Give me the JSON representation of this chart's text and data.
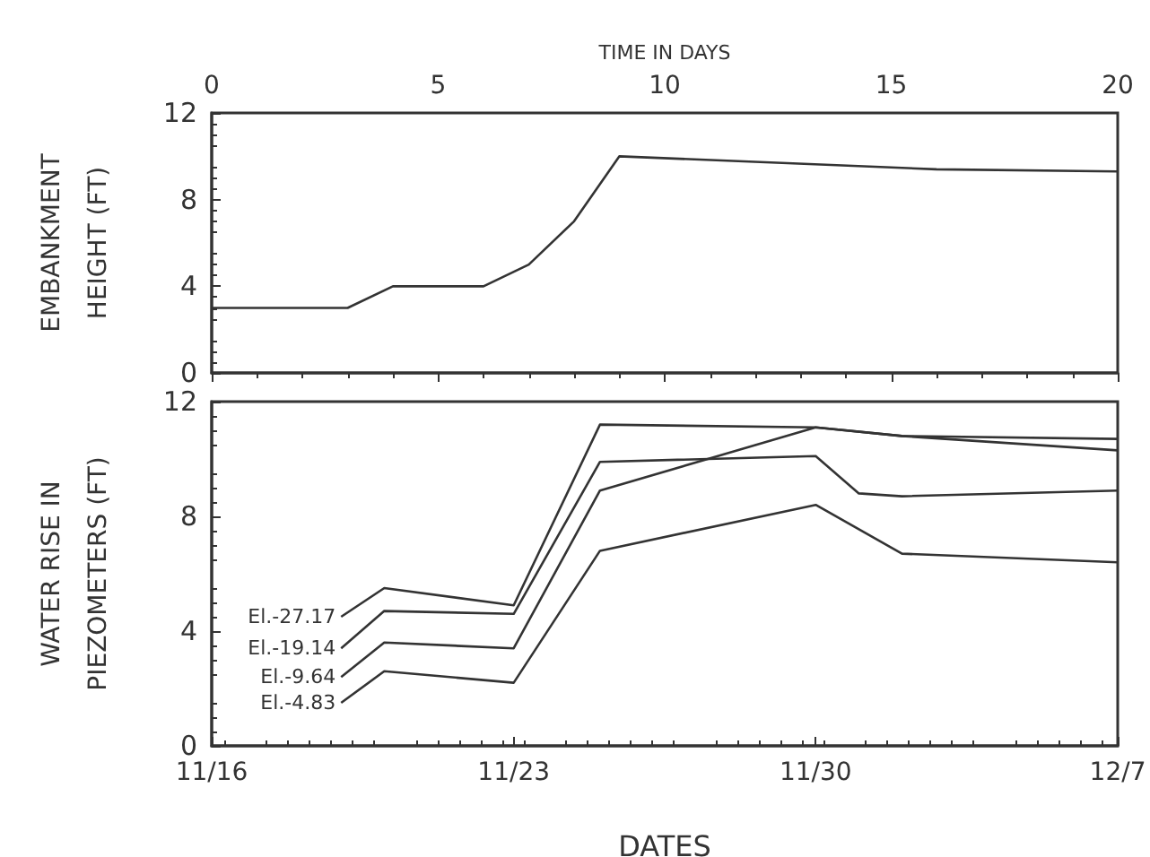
{
  "chart_data": [
    {
      "type": "line",
      "xlabel": "TIME IN DAYS",
      "ylabel": "EMBANKMENT HEIGHT (FT)",
      "x": [
        0,
        3,
        4,
        6,
        7,
        8,
        9,
        16,
        20
      ],
      "series": [
        {
          "color": "#333333",
          "values": [
            3,
            3,
            4,
            4,
            5,
            7,
            10,
            9.4,
            9.3
          ]
        }
      ],
      "xlim": [
        0,
        20
      ],
      "xticks": [
        0,
        5,
        10,
        15,
        20
      ],
      "ylim": [
        0,
        12
      ],
      "yticks": [
        0,
        4,
        8,
        12
      ],
      "grid": false,
      "legend": false,
      "marker": "none",
      "line_style": "solid"
    },
    {
      "type": "line",
      "xlabel": "DATES",
      "ylabel": "WATER RISE IN PIEZOMETERS (FT)",
      "x": [
        "--11-19",
        "--11-20",
        "--11-23",
        "--11-25",
        "--11-30",
        "--12-01",
        "--12-02",
        "--12-07"
      ],
      "series": [
        {
          "name": "El.-27.17",
          "color": "#333333",
          "values": [
            4.5,
            5.5,
            4.9,
            11.2,
            11.1,
            null,
            10.8,
            10.7
          ]
        },
        {
          "name": "El.-19.14",
          "color": "#333333",
          "values": [
            3.4,
            4.7,
            4.6,
            9.9,
            10.1,
            8.8,
            8.7,
            8.9
          ]
        },
        {
          "name": "El.-9.64",
          "color": "#333333",
          "values": [
            2.4,
            3.6,
            3.4,
            8.9,
            11.1,
            null,
            10.8,
            10.3
          ]
        },
        {
          "name": "El.-4.83",
          "color": "#333333",
          "values": [
            1.5,
            2.6,
            2.2,
            6.8,
            8.4,
            null,
            6.7,
            6.4
          ]
        }
      ],
      "xlim": [
        "--11-16",
        "--12-07"
      ],
      "xticks": [
        {
          "value": "--11-16",
          "label": "11/16"
        },
        {
          "value": "--11-23",
          "label": "11/23"
        },
        {
          "value": "--11-30",
          "label": "11/30"
        },
        {
          "value": "--12-07",
          "label": "12/7"
        }
      ],
      "ylim": [
        0,
        12
      ],
      "yticks": [
        0,
        4,
        8,
        12
      ],
      "grid": false,
      "legend": false,
      "marker": "none",
      "line_style": "solid"
    }
  ]
}
